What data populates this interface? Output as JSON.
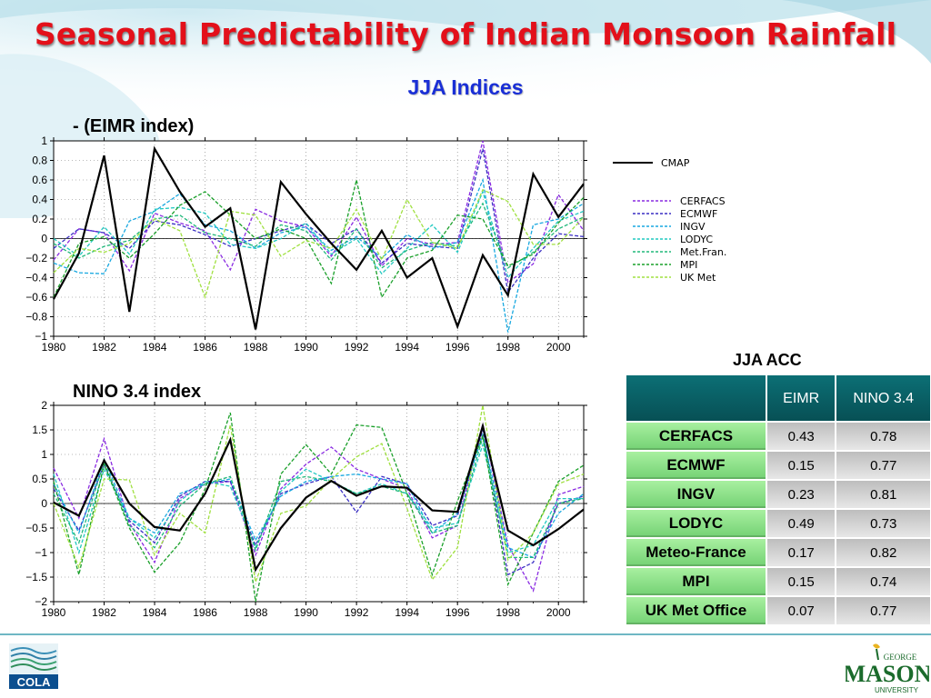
{
  "title": "Seasonal Predictability of Indian Monsoon Rainfall",
  "subtitle": "JJA Indices",
  "chart_data": [
    {
      "type": "line",
      "title": "- (EIMR index)",
      "x": [
        1980,
        1981,
        1982,
        1983,
        1984,
        1985,
        1986,
        1987,
        1988,
        1989,
        1990,
        1991,
        1992,
        1993,
        1994,
        1995,
        1996,
        1997,
        1998,
        1999,
        2000,
        2001
      ],
      "xlim": [
        1980,
        2001
      ],
      "ylim": [
        -1,
        1
      ],
      "xticks": [
        "1980",
        "1982",
        "1984",
        "1986",
        "1988",
        "1990",
        "1992",
        "1994",
        "1996",
        "1998",
        "2000"
      ],
      "yticks": [
        "1",
        "0.8",
        "0.6",
        "0.4",
        "0.2",
        "0",
        "−0.2",
        "−0.4",
        "−0.6",
        "−0.8",
        "−1"
      ],
      "grid": "dotted",
      "series": [
        {
          "name": "CMAP",
          "color": "#000000",
          "values": [
            -0.62,
            -0.15,
            0.85,
            -0.75,
            0.92,
            0.48,
            0.12,
            0.31,
            -0.93,
            0.58,
            0.25,
            -0.05,
            -0.32,
            0.08,
            -0.4,
            -0.2,
            -0.9,
            -0.17,
            -0.58,
            0.66,
            0.22,
            0.56
          ]
        },
        {
          "name": "CERFACS",
          "color": "#8a2be2",
          "values": [
            -0.22,
            0.1,
            0.06,
            -0.33,
            0.26,
            0.16,
            0.08,
            -0.32,
            0.3,
            0.18,
            0.12,
            -0.18,
            0.22,
            -0.28,
            0.0,
            -0.06,
            -0.04,
            1.0,
            -0.45,
            -0.26,
            0.45,
            0.08
          ]
        },
        {
          "name": "ECMWF",
          "color": "#3a2fc4",
          "values": [
            -0.1,
            0.1,
            0.06,
            -0.1,
            0.18,
            0.14,
            0.04,
            -0.08,
            0.0,
            0.08,
            0.15,
            -0.05,
            0.1,
            -0.25,
            -0.05,
            -0.08,
            -0.1,
            0.92,
            -0.55,
            -0.2,
            0.05,
            0.02
          ]
        },
        {
          "name": "INGV",
          "color": "#18a8e0",
          "values": [
            -0.25,
            -0.35,
            -0.36,
            0.18,
            0.28,
            0.46,
            0.14,
            0.08,
            -0.1,
            0.06,
            0.12,
            -0.12,
            0.02,
            -0.2,
            0.04,
            -0.1,
            -0.04,
            0.6,
            -0.96,
            0.14,
            0.2,
            0.36
          ]
        },
        {
          "name": "LODYC",
          "color": "#20c8c0",
          "values": [
            0.0,
            -0.18,
            0.12,
            -0.16,
            0.3,
            0.32,
            0.26,
            -0.06,
            -0.1,
            0.0,
            0.16,
            -0.16,
            0.0,
            -0.36,
            -0.1,
            0.14,
            -0.14,
            0.48,
            -0.4,
            -0.1,
            0.18,
            0.28
          ]
        },
        {
          "name": "Met.Fran.",
          "color": "#20b87a",
          "values": [
            -0.05,
            -0.2,
            -0.08,
            -0.02,
            0.2,
            0.24,
            0.06,
            0.0,
            -0.08,
            0.14,
            0.08,
            -0.22,
            0.1,
            -0.3,
            -0.12,
            -0.04,
            -0.08,
            0.36,
            -0.3,
            -0.14,
            0.1,
            0.22
          ]
        },
        {
          "name": "MPI",
          "color": "#1aa02a",
          "values": [
            -0.6,
            -0.05,
            0.02,
            -0.2,
            0.05,
            0.34,
            0.48,
            0.24,
            0.0,
            0.1,
            0.0,
            -0.46,
            0.6,
            -0.6,
            -0.2,
            -0.12,
            0.24,
            0.2,
            -0.28,
            -0.16,
            0.16,
            0.42
          ]
        },
        {
          "name": "UK  Met",
          "color": "#a0e040",
          "values": [
            -0.35,
            -0.1,
            -0.14,
            -0.05,
            0.2,
            0.08,
            -0.6,
            0.28,
            0.24,
            -0.18,
            -0.02,
            -0.1,
            0.3,
            -0.22,
            0.4,
            -0.04,
            -0.1,
            0.5,
            0.38,
            -0.06,
            -0.06,
            0.22
          ]
        }
      ]
    },
    {
      "type": "line",
      "title": "NINO 3.4 index",
      "x": [
        1980,
        1981,
        1982,
        1983,
        1984,
        1985,
        1986,
        1987,
        1988,
        1989,
        1990,
        1991,
        1992,
        1993,
        1994,
        1995,
        1996,
        1997,
        1998,
        1999,
        2000,
        2001
      ],
      "xlim": [
        1980,
        2001
      ],
      "ylim": [
        -2,
        2
      ],
      "xticks": [
        "1980",
        "1982",
        "1984",
        "1986",
        "1988",
        "1990",
        "1992",
        "1994",
        "1996",
        "1998",
        "2000"
      ],
      "yticks": [
        "2",
        "1.5",
        "1",
        "0.5",
        "0",
        "−0.5",
        "−1",
        "−1.5",
        "−2"
      ],
      "grid": "dotted",
      "series": [
        {
          "name": "CMAP",
          "color": "#000000",
          "values": [
            0.02,
            -0.25,
            0.88,
            0.0,
            -0.48,
            -0.55,
            0.2,
            1.3,
            -1.35,
            -0.5,
            0.12,
            0.46,
            0.16,
            0.35,
            0.32,
            -0.14,
            -0.17,
            1.58,
            -0.55,
            -0.85,
            -0.52,
            -0.12
          ]
        },
        {
          "name": "CERFACS",
          "color": "#8a2be2",
          "values": [
            0.72,
            -0.3,
            1.32,
            -0.4,
            -1.2,
            0.1,
            0.4,
            0.45,
            -1.05,
            0.3,
            0.8,
            1.15,
            0.7,
            0.5,
            0.3,
            -0.7,
            -0.45,
            1.62,
            -0.85,
            -1.78,
            0.18,
            0.35
          ]
        },
        {
          "name": "ECMWF",
          "color": "#3a2fc4",
          "values": [
            0.3,
            -0.55,
            0.8,
            -0.35,
            -0.8,
            0.15,
            0.45,
            0.45,
            -0.85,
            0.2,
            0.4,
            0.55,
            -0.18,
            0.55,
            0.4,
            -0.45,
            -0.25,
            1.5,
            -1.45,
            -1.2,
            0.0,
            0.15
          ]
        },
        {
          "name": "INGV",
          "color": "#18a8e0",
          "values": [
            0.4,
            -0.6,
            0.9,
            -0.3,
            -0.6,
            0.2,
            0.4,
            0.5,
            -0.75,
            0.15,
            0.45,
            0.55,
            0.6,
            0.5,
            0.4,
            -0.6,
            -0.2,
            1.4,
            -0.9,
            -1.1,
            -0.2,
            0.2
          ]
        },
        {
          "name": "LODYC",
          "color": "#20c8c0",
          "values": [
            0.6,
            -1.0,
            0.7,
            -0.3,
            -0.7,
            0.05,
            0.45,
            0.35,
            -0.9,
            0.25,
            0.7,
            0.45,
            0.2,
            0.4,
            0.2,
            -0.5,
            -0.4,
            1.2,
            -1.0,
            -0.85,
            0.1,
            0.1
          ]
        },
        {
          "name": "Met.Fran.",
          "color": "#20b87a",
          "values": [
            0.2,
            -0.8,
            0.85,
            -0.45,
            -0.9,
            -0.05,
            0.4,
            0.55,
            -0.95,
            0.45,
            0.55,
            0.45,
            0.2,
            0.35,
            0.2,
            -0.6,
            -0.45,
            1.35,
            -1.1,
            -1.1,
            0.0,
            0.1
          ]
        },
        {
          "name": "MPI",
          "color": "#1aa02a",
          "values": [
            0.45,
            -1.45,
            0.8,
            -0.5,
            -1.4,
            -0.8,
            0.3,
            1.85,
            -2.0,
            0.6,
            1.2,
            0.6,
            1.6,
            1.55,
            0.2,
            -1.45,
            0.05,
            1.38,
            -1.65,
            -0.6,
            0.45,
            0.78
          ]
        },
        {
          "name": "UK  Met",
          "color": "#a0e040",
          "values": [
            0.0,
            -1.3,
            0.5,
            0.48,
            -1.05,
            -0.2,
            -0.6,
            1.6,
            -1.6,
            -0.2,
            -0.05,
            0.5,
            0.95,
            1.22,
            -0.1,
            -1.55,
            -0.9,
            2.0,
            -1.15,
            -0.6,
            0.4,
            0.6
          ]
        }
      ]
    }
  ],
  "legend": {
    "cmap": "CMAP",
    "items": [
      {
        "label": "CERFACS",
        "color": "#8a2be2"
      },
      {
        "label": "ECMWF",
        "color": "#3a2fc4"
      },
      {
        "label": "INGV",
        "color": "#18a8e0"
      },
      {
        "label": "LODYC",
        "color": "#20c8c0"
      },
      {
        "label": "Met.Fran.",
        "color": "#20b87a"
      },
      {
        "label": "MPI",
        "color": "#1aa02a"
      },
      {
        "label": "UK  Met",
        "color": "#a0e040"
      }
    ]
  },
  "acc_table": {
    "title": "JJA ACC",
    "columns": [
      "EIMR",
      "NINO 3.4"
    ],
    "rows": [
      {
        "model": "CERFACS",
        "eimr": "0.43",
        "nino": "0.78"
      },
      {
        "model": "ECMWF",
        "eimr": "0.15",
        "nino": "0.77"
      },
      {
        "model": "INGV",
        "eimr": "0.23",
        "nino": "0.81"
      },
      {
        "model": "LODYC",
        "eimr": "0.49",
        "nino": "0.73"
      },
      {
        "model": "Meteo-France",
        "eimr": "0.17",
        "nino": "0.82"
      },
      {
        "model": "MPI",
        "eimr": "0.15",
        "nino": "0.74"
      },
      {
        "model": "UK Met Office",
        "eimr": "0.07",
        "nino": "0.77"
      }
    ]
  },
  "logos": {
    "left": "COLA",
    "right_top": "GEORGE",
    "right_main": "MASON",
    "right_bottom": "UNIVERSITY"
  },
  "colors": {
    "title": "#e3101a",
    "subtitle": "#1a2fd6",
    "table_header": "#0a6066",
    "table_row_label": "#8fe08a",
    "table_cell": "#d0d0d0"
  }
}
